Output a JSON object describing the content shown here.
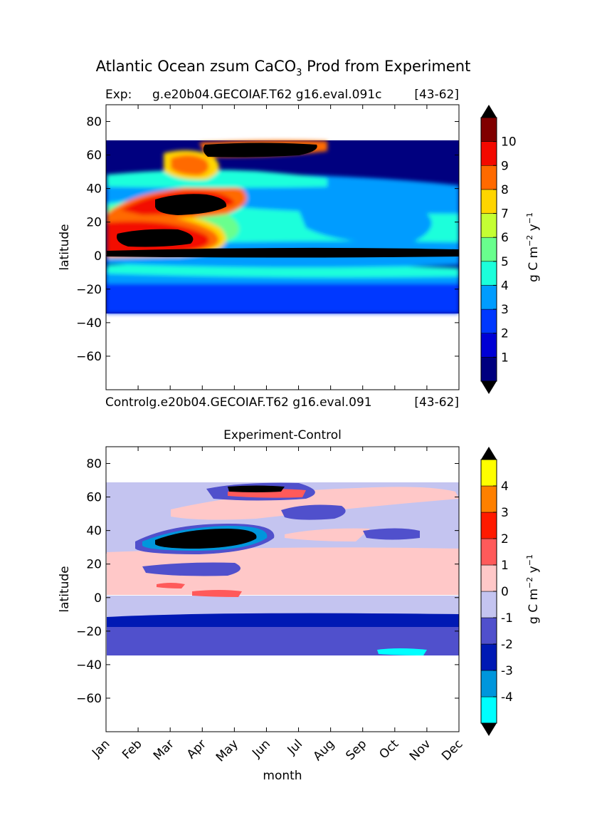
{
  "figure": {
    "title_main": "Atlantic Ocean zsum CaCO",
    "title_sub": "3",
    "title_rest": " Prod from Experiment"
  },
  "chart_data": [
    {
      "type": "heatmap",
      "title_left": "Exp:",
      "title_center": "g.e20b04.GECOIAF.T62 g16.eval.091c",
      "title_right": "[43-62]",
      "xlabel": "Controlg.e20b04.GECOIAF.T62 g16.eval.091",
      "xlabel_right": "[43-62]",
      "ylabel": "latitude",
      "y_ticks": [
        80,
        60,
        40,
        20,
        0,
        -20,
        -40,
        -60
      ],
      "ylim": [
        -80,
        90
      ],
      "data_lat_range": [
        -34,
        69
      ],
      "colorbar": {
        "label": "g C m",
        "label_exp1": "−2",
        "label_mid": " y",
        "label_exp2": "−1",
        "levels": [
          0,
          1,
          2,
          3,
          4,
          5,
          6,
          7,
          8,
          9,
          10,
          11
        ],
        "tick_labels": [
          "1",
          "2",
          "3",
          "4",
          "5",
          "6",
          "7",
          "8",
          "9",
          "10"
        ],
        "colors": [
          "#00007f",
          "#0000d5",
          "#0038ff",
          "#009cff",
          "#1cffdb",
          "#69ff8d",
          "#c4ff33",
          "#ffd500",
          "#ff6a00",
          "#f30900",
          "#800000"
        ],
        "extend": "both"
      }
    },
    {
      "type": "heatmap",
      "title": "Experiment-Control",
      "xlabel": "month",
      "ylabel": "latitude",
      "x_categories": [
        "Jan",
        "Feb",
        "Mar",
        "Apr",
        "May",
        "Jun",
        "Jul",
        "Aug",
        "Sep",
        "Oct",
        "Nov",
        "Dec"
      ],
      "y_ticks": [
        80,
        60,
        40,
        20,
        0,
        -20,
        -40,
        -60
      ],
      "ylim": [
        -80,
        90
      ],
      "data_lat_range": [
        -34,
        69
      ],
      "colorbar": {
        "label": "g C m",
        "label_exp1": "−2",
        "label_mid": " y",
        "label_exp2": "−1",
        "levels": [
          -5,
          -4,
          -3,
          -2,
          -1,
          0,
          1,
          2,
          3,
          4,
          5
        ],
        "tick_labels": [
          "4",
          "3",
          "2",
          "1",
          "0",
          "-1",
          "-2",
          "-3",
          "-4"
        ],
        "colors": [
          "#00ffff",
          "#0096dc",
          "#0019b4",
          "#5050cc",
          "#c4c4f0",
          "#ffc8c8",
          "#ff5a5a",
          "#ff1a00",
          "#ff8000",
          "#ffff00"
        ],
        "extend": "both"
      }
    }
  ]
}
